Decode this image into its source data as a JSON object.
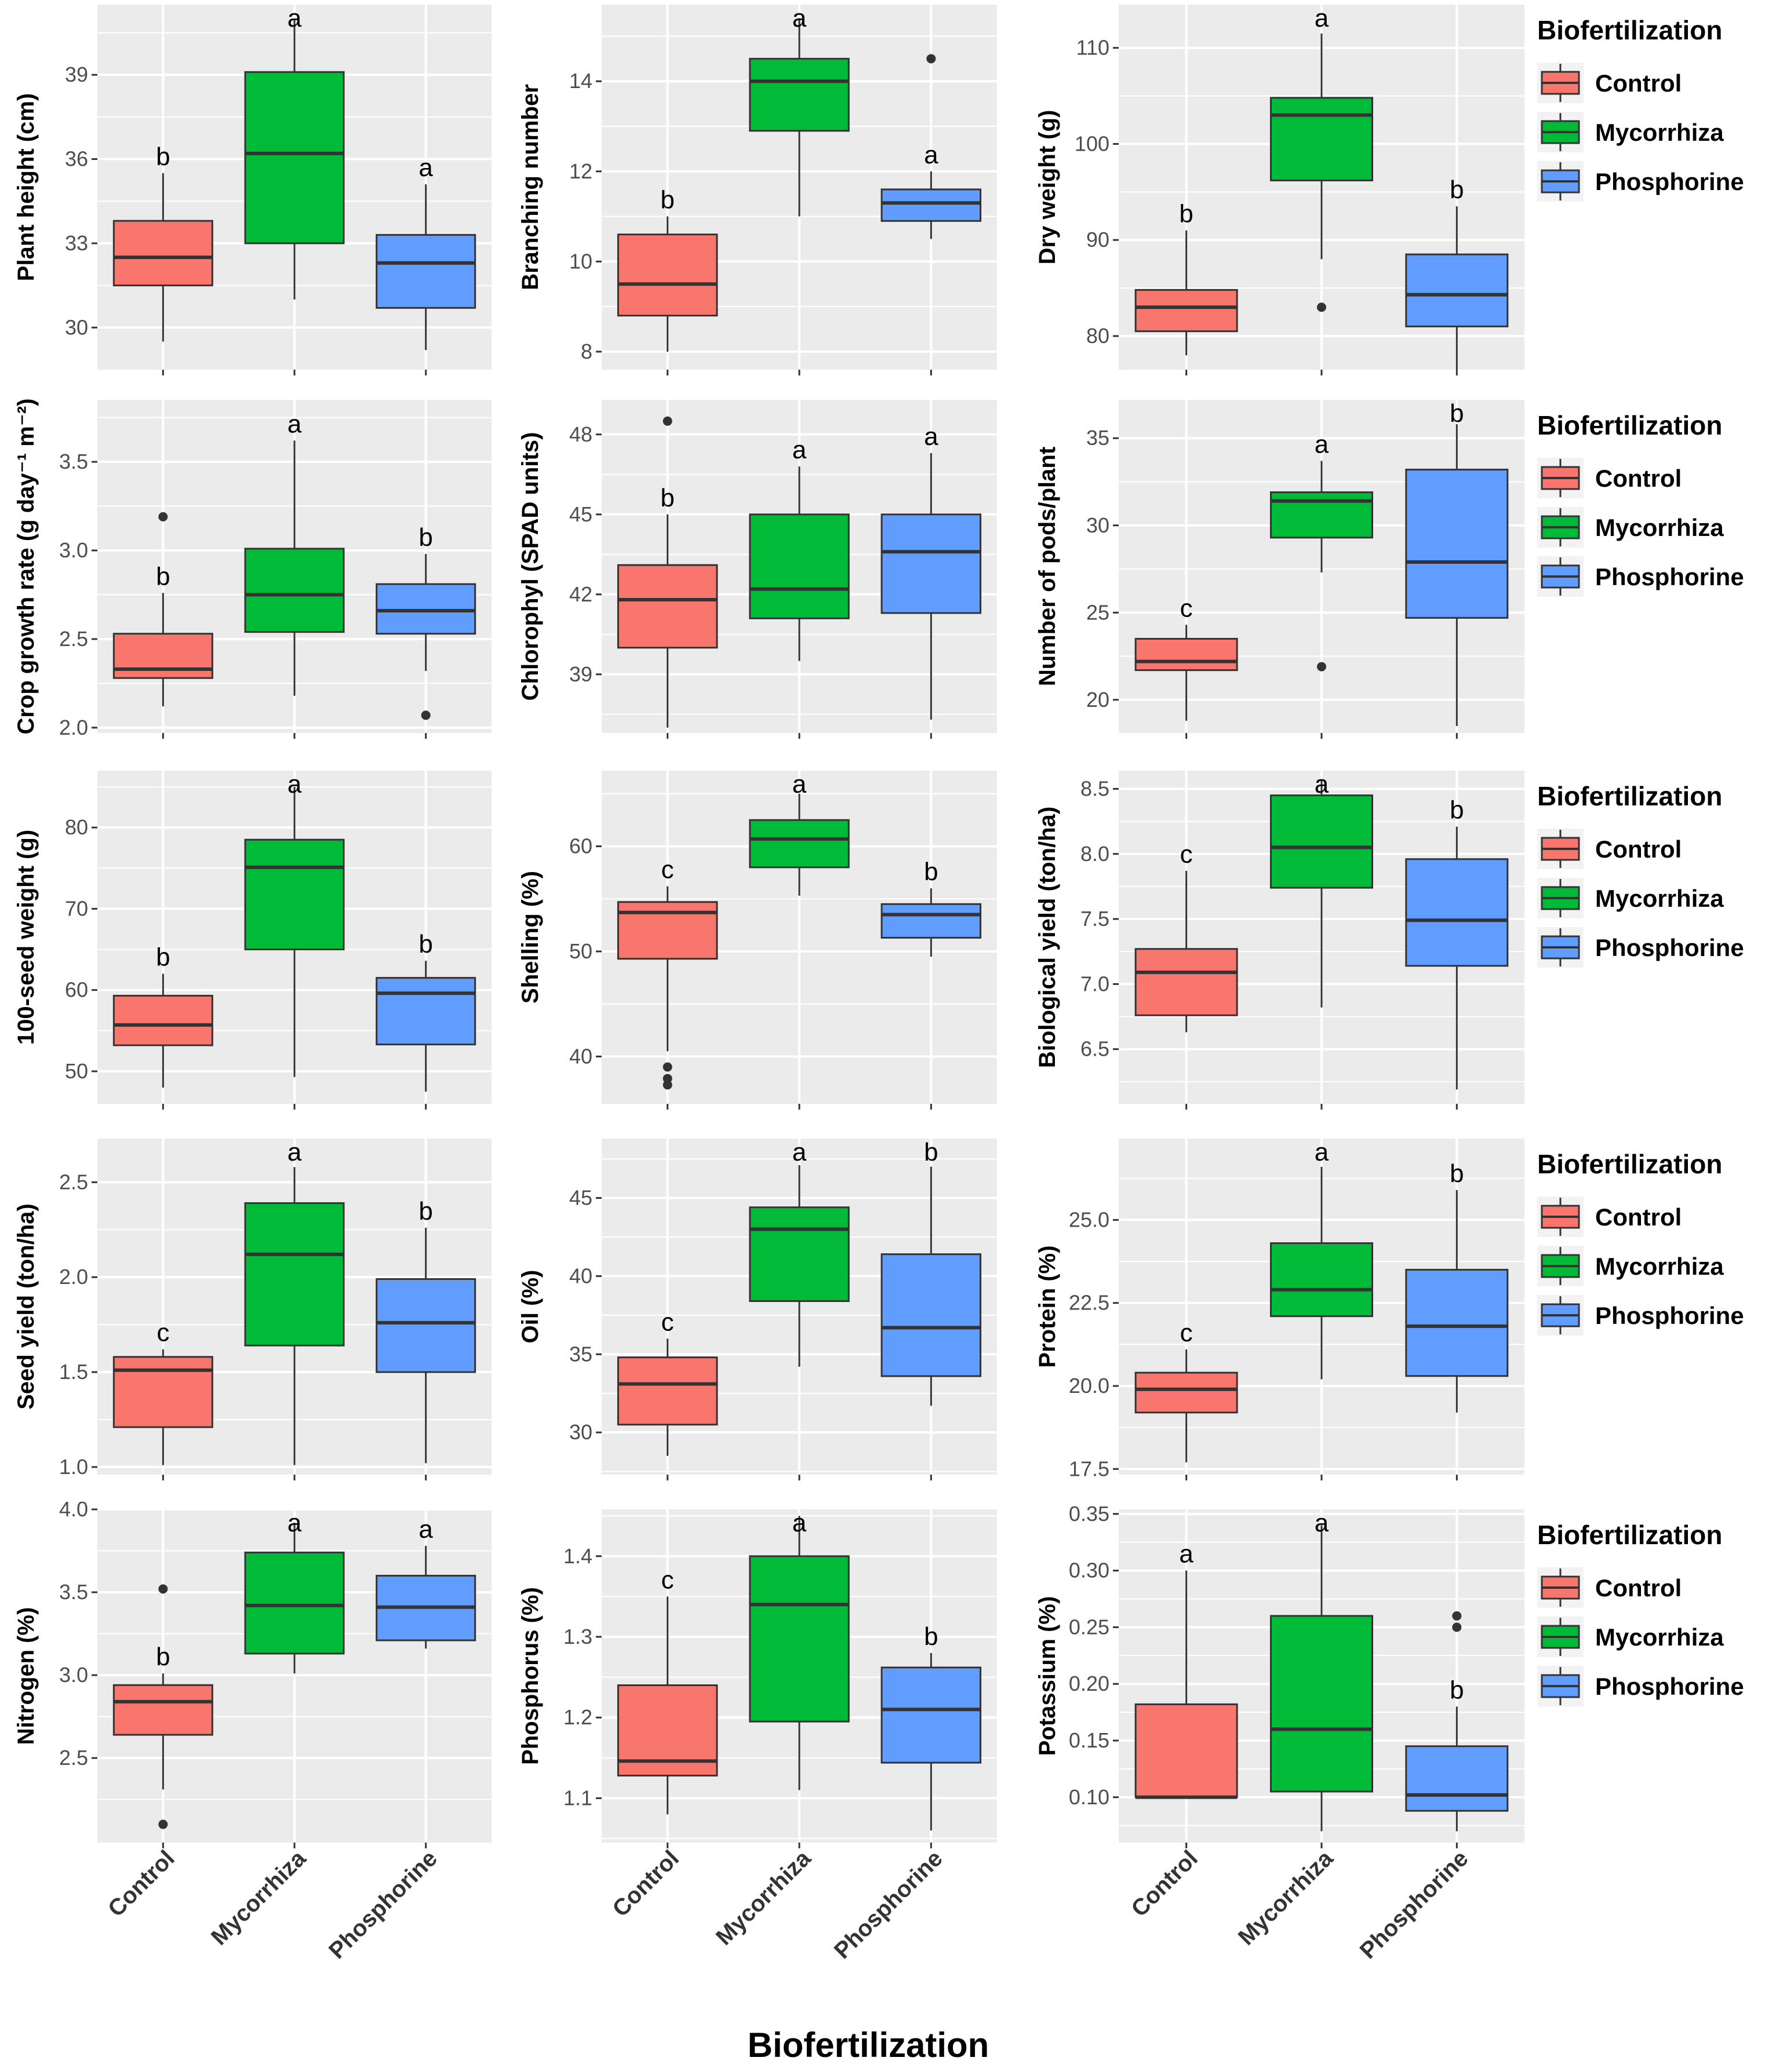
{
  "colors": {
    "Control": "#F8766D",
    "Mycorrhiza": "#00BA38",
    "Phosphorine": "#619CFF",
    "panel_background": "#EBEBEB",
    "gridline": "#FFFFFF"
  },
  "chart_data": {
    "type": "boxplot",
    "layout": "5x3 facet grid",
    "shared_xlabel": "Biofertilization",
    "categories": [
      "Control",
      "Mycorrhiza",
      "Phosphorine"
    ],
    "legend": {
      "title": "Biofertilization",
      "placement": "right",
      "entries": [
        "Control",
        "Mycorrhiza",
        "Phosphorine"
      ]
    },
    "panels": [
      {
        "ylabel": "Plant height (cm)",
        "yticks": [
          30,
          33,
          36,
          39
        ],
        "ylim": [
          28.5,
          41.5
        ],
        "boxes": [
          {
            "category": "Control",
            "min": 29.5,
            "q1": 31.5,
            "median": 32.5,
            "q3": 33.8,
            "max": 35.5,
            "outliers": [],
            "letter": "b"
          },
          {
            "category": "Mycorrhiza",
            "min": 31.0,
            "q1": 33.0,
            "median": 36.2,
            "q3": 39.1,
            "max": 41.0,
            "outliers": [],
            "letter": "a"
          },
          {
            "category": "Phosphorine",
            "min": 29.2,
            "q1": 30.7,
            "median": 32.3,
            "q3": 33.3,
            "max": 35.1,
            "outliers": [],
            "letter": "a"
          }
        ]
      },
      {
        "ylabel": "Branching number",
        "yticks": [
          8,
          10,
          12,
          14
        ],
        "ylim": [
          7.6,
          15.7
        ],
        "boxes": [
          {
            "category": "Control",
            "min": 8.0,
            "q1": 8.8,
            "median": 9.5,
            "q3": 10.6,
            "max": 11.0,
            "outliers": [],
            "letter": "b"
          },
          {
            "category": "Mycorrhiza",
            "min": 11.0,
            "q1": 12.9,
            "median": 14.0,
            "q3": 14.5,
            "max": 15.4,
            "outliers": [],
            "letter": "a"
          },
          {
            "category": "Phosphorine",
            "min": 10.5,
            "q1": 10.9,
            "median": 11.3,
            "q3": 11.6,
            "max": 12.0,
            "outliers": [
              14.5
            ],
            "letter": "a"
          }
        ]
      },
      {
        "ylabel": "Dry weight (g)",
        "yticks": [
          80,
          90,
          100,
          110
        ],
        "ylim": [
          76.5,
          114.5
        ],
        "boxes": [
          {
            "category": "Control",
            "min": 78.0,
            "q1": 80.5,
            "median": 83.0,
            "q3": 84.8,
            "max": 91.0,
            "outliers": [],
            "letter": "b"
          },
          {
            "category": "Mycorrhiza",
            "min": 88.0,
            "q1": 96.2,
            "median": 103.0,
            "q3": 104.8,
            "max": 111.5,
            "outliers": [
              83.0
            ],
            "letter": "a"
          },
          {
            "category": "Phosphorine",
            "min": 76.5,
            "q1": 81.0,
            "median": 84.3,
            "q3": 88.5,
            "max": 93.5,
            "outliers": [],
            "letter": "b"
          }
        ]
      },
      {
        "ylabel": "Crop growth rate (g day⁻¹ m⁻²)",
        "yticks": [
          2.0,
          2.5,
          3.0,
          3.5
        ],
        "yticklabels": [
          "2.0",
          "2.5",
          "3.0",
          "3.5"
        ],
        "ylim": [
          1.97,
          3.85
        ],
        "boxes": [
          {
            "category": "Control",
            "min": 2.12,
            "q1": 2.28,
            "median": 2.33,
            "q3": 2.53,
            "max": 2.76,
            "outliers": [
              3.19
            ],
            "letter": "b"
          },
          {
            "category": "Mycorrhiza",
            "min": 2.18,
            "q1": 2.54,
            "median": 2.75,
            "q3": 3.01,
            "max": 3.62,
            "outliers": [],
            "letter": "a"
          },
          {
            "category": "Phosphorine",
            "min": 2.32,
            "q1": 2.53,
            "median": 2.66,
            "q3": 2.81,
            "max": 2.98,
            "outliers": [
              2.07
            ],
            "letter": "b"
          }
        ]
      },
      {
        "ylabel": "Chlorophyl (SPAD units)",
        "yticks": [
          39,
          42,
          45,
          48
        ],
        "ylim": [
          36.8,
          49.3
        ],
        "boxes": [
          {
            "category": "Control",
            "min": 37.0,
            "q1": 40.0,
            "median": 41.8,
            "q3": 43.1,
            "max": 45.0,
            "outliers": [
              48.5
            ],
            "letter": "b"
          },
          {
            "category": "Mycorrhiza",
            "min": 39.5,
            "q1": 41.1,
            "median": 42.2,
            "q3": 45.0,
            "max": 46.8,
            "outliers": [],
            "letter": "a"
          },
          {
            "category": "Phosphorine",
            "min": 37.3,
            "q1": 41.3,
            "median": 43.6,
            "q3": 45.0,
            "max": 47.3,
            "outliers": [],
            "letter": "a"
          }
        ]
      },
      {
        "ylabel": "Number of pods/plant",
        "yticks": [
          20,
          25,
          30,
          35
        ],
        "ylim": [
          18.1,
          37.2
        ],
        "boxes": [
          {
            "category": "Control",
            "min": 18.8,
            "q1": 21.7,
            "median": 22.2,
            "q3": 23.5,
            "max": 24.3,
            "outliers": [],
            "letter": "c"
          },
          {
            "category": "Mycorrhiza",
            "min": 27.3,
            "q1": 29.3,
            "median": 31.4,
            "q3": 31.9,
            "max": 33.7,
            "outliers": [
              21.9
            ],
            "letter": "a"
          },
          {
            "category": "Phosphorine",
            "min": 18.5,
            "q1": 24.7,
            "median": 27.9,
            "q3": 33.2,
            "max": 35.8,
            "outliers": [],
            "letter": "b"
          }
        ]
      },
      {
        "ylabel": "100-seed weight (g)",
        "yticks": [
          50,
          60,
          70,
          80
        ],
        "ylim": [
          46.0,
          87.0
        ],
        "boxes": [
          {
            "category": "Control",
            "min": 48.0,
            "q1": 53.2,
            "median": 55.7,
            "q3": 59.3,
            "max": 62.0,
            "outliers": [],
            "letter": "b"
          },
          {
            "category": "Mycorrhiza",
            "min": 49.3,
            "q1": 65.0,
            "median": 75.1,
            "q3": 78.5,
            "max": 85.0,
            "outliers": [],
            "letter": "a"
          },
          {
            "category": "Phosphorine",
            "min": 47.5,
            "q1": 53.3,
            "median": 59.6,
            "q3": 61.5,
            "max": 63.6,
            "outliers": [],
            "letter": "b"
          }
        ]
      },
      {
        "ylabel": "Shelling (%)",
        "yticks": [
          40,
          50,
          60
        ],
        "ylim": [
          35.5,
          67.2
        ],
        "boxes": [
          {
            "category": "Control",
            "min": 40.5,
            "q1": 49.3,
            "median": 53.7,
            "q3": 54.7,
            "max": 56.2,
            "outliers": [
              39.0,
              37.9,
              37.3
            ],
            "letter": "c"
          },
          {
            "category": "Mycorrhiza",
            "min": 55.3,
            "q1": 58.0,
            "median": 60.7,
            "q3": 62.5,
            "max": 65.0,
            "outliers": [],
            "letter": "a"
          },
          {
            "category": "Phosphorine",
            "min": 49.5,
            "q1": 51.3,
            "median": 53.5,
            "q3": 54.5,
            "max": 56.0,
            "outliers": [],
            "letter": "b"
          }
        ]
      },
      {
        "ylabel": "Biological yield (ton/ha)",
        "yticks": [
          6.5,
          7.0,
          7.5,
          8.0,
          8.5
        ],
        "yticklabels": [
          "6.5",
          "7.0",
          "7.5",
          "8.0",
          "8.5"
        ],
        "ylim": [
          6.08,
          8.64
        ],
        "boxes": [
          {
            "category": "Control",
            "min": 6.63,
            "q1": 6.76,
            "median": 7.09,
            "q3": 7.27,
            "max": 7.87,
            "outliers": [],
            "letter": "c"
          },
          {
            "category": "Mycorrhiza",
            "min": 6.82,
            "q1": 7.74,
            "median": 8.05,
            "q3": 8.45,
            "max": 8.57,
            "outliers": [],
            "letter": "a"
          },
          {
            "category": "Phosphorine",
            "min": 6.19,
            "q1": 7.14,
            "median": 7.49,
            "q3": 7.96,
            "max": 8.21,
            "outliers": [],
            "letter": "b"
          }
        ]
      },
      {
        "ylabel": "Seed yield (ton/ha)",
        "yticks": [
          1.0,
          1.5,
          2.0,
          2.5
        ],
        "yticklabels": [
          "1.0",
          "1.5",
          "2.0",
          "2.5"
        ],
        "ylim": [
          0.96,
          2.73
        ],
        "boxes": [
          {
            "category": "Control",
            "min": 1.01,
            "q1": 1.21,
            "median": 1.51,
            "q3": 1.58,
            "max": 1.62,
            "outliers": [],
            "letter": "c"
          },
          {
            "category": "Mycorrhiza",
            "min": 1.01,
            "q1": 1.64,
            "median": 2.12,
            "q3": 2.39,
            "max": 2.58,
            "outliers": [],
            "letter": "a"
          },
          {
            "category": "Phosphorine",
            "min": 1.02,
            "q1": 1.5,
            "median": 1.76,
            "q3": 1.99,
            "max": 2.26,
            "outliers": [],
            "letter": "b"
          }
        ]
      },
      {
        "ylabel": "Oil (%)",
        "yticks": [
          30,
          35,
          40,
          45
        ],
        "ylim": [
          27.3,
          48.8
        ],
        "boxes": [
          {
            "category": "Control",
            "min": 28.5,
            "q1": 30.5,
            "median": 33.1,
            "q3": 34.8,
            "max": 36.0,
            "outliers": [],
            "letter": "c"
          },
          {
            "category": "Mycorrhiza",
            "min": 34.2,
            "q1": 38.4,
            "median": 43.0,
            "q3": 44.4,
            "max": 47.1,
            "outliers": [],
            "letter": "a"
          },
          {
            "category": "Phosphorine",
            "min": 31.7,
            "q1": 33.6,
            "median": 36.7,
            "q3": 41.4,
            "max": 47.0,
            "outliers": [],
            "letter": "b"
          }
        ]
      },
      {
        "ylabel": "Protein (%)",
        "yticks": [
          17.5,
          20.0,
          22.5,
          25.0
        ],
        "yticklabels": [
          "17.5",
          "20.0",
          "22.5",
          "25.0"
        ],
        "ylim": [
          17.33,
          27.45
        ],
        "boxes": [
          {
            "category": "Control",
            "min": 17.7,
            "q1": 19.2,
            "median": 19.9,
            "q3": 20.4,
            "max": 21.1,
            "outliers": [],
            "letter": "c"
          },
          {
            "category": "Mycorrhiza",
            "min": 20.2,
            "q1": 22.1,
            "median": 22.9,
            "q3": 24.3,
            "max": 26.6,
            "outliers": [],
            "letter": "a"
          },
          {
            "category": "Phosphorine",
            "min": 19.2,
            "q1": 20.3,
            "median": 21.8,
            "q3": 23.5,
            "max": 25.9,
            "outliers": [],
            "letter": "b"
          }
        ]
      },
      {
        "ylabel": "Nitrogen (%)",
        "yticks": [
          2.5,
          3.0,
          3.5,
          4.0
        ],
        "yticklabels": [
          "2.5",
          "3.0",
          "3.5",
          "4.0"
        ],
        "ylim": [
          1.99,
          4.0
        ],
        "boxes": [
          {
            "category": "Control",
            "min": 2.31,
            "q1": 2.64,
            "median": 2.84,
            "q3": 2.94,
            "max": 3.01,
            "outliers": [
              3.52,
              2.1
            ],
            "letter": "b"
          },
          {
            "category": "Mycorrhiza",
            "min": 3.01,
            "q1": 3.13,
            "median": 3.42,
            "q3": 3.74,
            "max": 3.92,
            "outliers": [],
            "letter": "a"
          },
          {
            "category": "Phosphorine",
            "min": 3.16,
            "q1": 3.21,
            "median": 3.41,
            "q3": 3.6,
            "max": 3.78,
            "outliers": [],
            "letter": "a"
          }
        ]
      },
      {
        "ylabel": "Phosphorus (%)",
        "yticks": [
          1.1,
          1.2,
          1.3,
          1.4
        ],
        "yticklabels": [
          "1.1",
          "1.2",
          "1.3",
          "1.4"
        ],
        "ylim": [
          1.045,
          1.458
        ],
        "boxes": [
          {
            "category": "Control",
            "min": 1.08,
            "q1": 1.128,
            "median": 1.146,
            "q3": 1.24,
            "max": 1.35,
            "outliers": [],
            "letter": "c"
          },
          {
            "category": "Mycorrhiza",
            "min": 1.11,
            "q1": 1.195,
            "median": 1.34,
            "q3": 1.4,
            "max": 1.45,
            "outliers": [],
            "letter": "a"
          },
          {
            "category": "Phosphorine",
            "min": 1.06,
            "q1": 1.144,
            "median": 1.21,
            "q3": 1.262,
            "max": 1.28,
            "outliers": [],
            "letter": "b"
          }
        ]
      },
      {
        "ylabel": "Potassium (%)",
        "yticks": [
          0.1,
          0.15,
          0.2,
          0.25,
          0.3,
          0.35
        ],
        "yticklabels": [
          "0.10",
          "0.15",
          "0.20",
          "0.25",
          "0.30",
          "0.35"
        ],
        "ylim": [
          0.06,
          0.354
        ],
        "boxes": [
          {
            "category": "Control",
            "min": 0.1,
            "q1": 0.1,
            "median": 0.1,
            "q3": 0.182,
            "max": 0.3,
            "outliers": [],
            "letter": "a"
          },
          {
            "category": "Mycorrhiza",
            "min": 0.07,
            "q1": 0.105,
            "median": 0.16,
            "q3": 0.26,
            "max": 0.34,
            "outliers": [],
            "letter": "a"
          },
          {
            "category": "Phosphorine",
            "min": 0.07,
            "q1": 0.088,
            "median": 0.102,
            "q3": 0.145,
            "max": 0.18,
            "outliers": [
              0.26,
              0.25
            ],
            "letter": "b"
          }
        ]
      }
    ]
  }
}
